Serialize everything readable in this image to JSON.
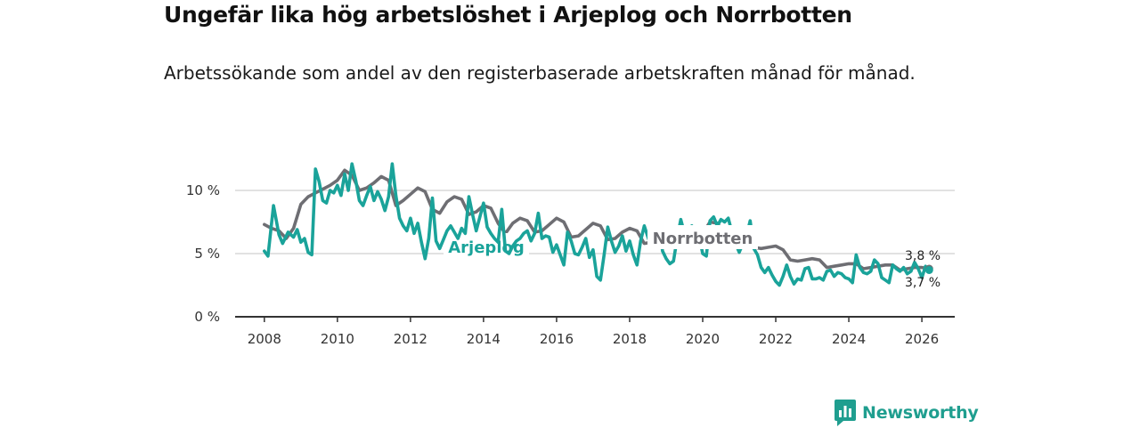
{
  "brand": {
    "name": "Newsworthy",
    "color": "#1f9e8f"
  },
  "chart_data": {
    "type": "line",
    "title": "Ungefär lika hög arbetslöshet i Arjeplog och Norrbotten",
    "subtitle": "Arbetssökande som andel av den registerbaserade arbetskraften månad för månad.",
    "xlabel": "",
    "ylabel": "",
    "xlim": [
      2007.2,
      2026.9
    ],
    "ylim": [
      0,
      12.5
    ],
    "x_ticks": [
      2008,
      2010,
      2012,
      2014,
      2016,
      2018,
      2020,
      2022,
      2024,
      2026
    ],
    "x_tick_labels": [
      "2008",
      "2010",
      "2012",
      "2014",
      "2016",
      "2018",
      "2020",
      "2022",
      "2024",
      "2026"
    ],
    "y_ticks": [
      0,
      5,
      10
    ],
    "y_tick_labels": [
      "0 %",
      "5 %",
      "10 %"
    ],
    "grid": true,
    "series": [
      {
        "name": "Norrbotten",
        "color": "#6e6e73",
        "end_label": "3,8 %",
        "points": [
          [
            2008.0,
            7.3
          ],
          [
            2008.2,
            7.0
          ],
          [
            2008.4,
            6.8
          ],
          [
            2008.6,
            6.2
          ],
          [
            2008.8,
            7.0
          ],
          [
            2009.0,
            8.9
          ],
          [
            2009.2,
            9.5
          ],
          [
            2009.4,
            9.8
          ],
          [
            2009.6,
            10.1
          ],
          [
            2009.8,
            10.4
          ],
          [
            2010.0,
            10.8
          ],
          [
            2010.2,
            11.6
          ],
          [
            2010.4,
            11.2
          ],
          [
            2010.6,
            10.0
          ],
          [
            2010.8,
            10.2
          ],
          [
            2011.0,
            10.6
          ],
          [
            2011.2,
            11.1
          ],
          [
            2011.4,
            10.8
          ],
          [
            2011.6,
            8.8
          ],
          [
            2011.8,
            9.2
          ],
          [
            2012.0,
            9.7
          ],
          [
            2012.2,
            10.2
          ],
          [
            2012.4,
            9.9
          ],
          [
            2012.6,
            8.5
          ],
          [
            2012.8,
            8.2
          ],
          [
            2013.0,
            9.1
          ],
          [
            2013.2,
            9.5
          ],
          [
            2013.4,
            9.3
          ],
          [
            2013.6,
            8.1
          ],
          [
            2013.8,
            8.3
          ],
          [
            2014.0,
            8.8
          ],
          [
            2014.2,
            8.6
          ],
          [
            2014.4,
            7.4
          ],
          [
            2014.6,
            6.6
          ],
          [
            2014.8,
            7.4
          ],
          [
            2015.0,
            7.8
          ],
          [
            2015.2,
            7.6
          ],
          [
            2015.4,
            6.7
          ],
          [
            2015.6,
            6.8
          ],
          [
            2015.8,
            7.3
          ],
          [
            2016.0,
            7.8
          ],
          [
            2016.2,
            7.5
          ],
          [
            2016.4,
            6.3
          ],
          [
            2016.6,
            6.4
          ],
          [
            2016.8,
            6.9
          ],
          [
            2017.0,
            7.4
          ],
          [
            2017.2,
            7.2
          ],
          [
            2017.4,
            6.1
          ],
          [
            2017.6,
            6.2
          ],
          [
            2017.8,
            6.7
          ],
          [
            2018.0,
            7.0
          ],
          [
            2018.2,
            6.8
          ],
          [
            2018.4,
            5.8
          ],
          [
            2018.6,
            5.9
          ],
          [
            2018.8,
            6.3
          ],
          [
            2019.0,
            6.6
          ],
          [
            2019.2,
            6.5
          ],
          [
            2019.4,
            5.7
          ],
          [
            2019.6,
            5.8
          ],
          [
            2019.8,
            6.2
          ],
          [
            2020.0,
            6.6
          ],
          [
            2020.2,
            7.5
          ],
          [
            2020.4,
            7.4
          ],
          [
            2020.6,
            6.5
          ],
          [
            2020.8,
            6.3
          ],
          [
            2021.0,
            6.6
          ],
          [
            2021.2,
            6.5
          ],
          [
            2021.4,
            5.5
          ],
          [
            2021.6,
            5.4
          ],
          [
            2021.8,
            5.5
          ],
          [
            2022.0,
            5.6
          ],
          [
            2022.2,
            5.3
          ],
          [
            2022.4,
            4.5
          ],
          [
            2022.6,
            4.4
          ],
          [
            2022.8,
            4.5
          ],
          [
            2023.0,
            4.6
          ],
          [
            2023.2,
            4.5
          ],
          [
            2023.4,
            3.9
          ],
          [
            2023.6,
            4.0
          ],
          [
            2023.8,
            4.1
          ],
          [
            2024.0,
            4.2
          ],
          [
            2024.2,
            4.2
          ],
          [
            2024.4,
            3.8
          ],
          [
            2024.6,
            3.9
          ],
          [
            2024.8,
            4.0
          ],
          [
            2025.0,
            4.1
          ],
          [
            2025.2,
            4.1
          ],
          [
            2025.4,
            3.7
          ],
          [
            2025.6,
            3.8
          ],
          [
            2025.8,
            3.9
          ],
          [
            2026.0,
            3.9
          ],
          [
            2026.2,
            3.8
          ]
        ]
      },
      {
        "name": "Arjeplog",
        "color": "#1aa39a",
        "end_label": "3,7 %",
        "points": [
          [
            2008.0,
            5.2
          ],
          [
            2008.1,
            4.8
          ],
          [
            2008.25,
            8.8
          ],
          [
            2008.4,
            6.5
          ],
          [
            2008.5,
            5.8
          ],
          [
            2008.65,
            6.7
          ],
          [
            2008.8,
            6.3
          ],
          [
            2008.9,
            6.9
          ],
          [
            2009.0,
            5.9
          ],
          [
            2009.1,
            6.2
          ],
          [
            2009.2,
            5.1
          ],
          [
            2009.3,
            4.9
          ],
          [
            2009.4,
            11.7
          ],
          [
            2009.5,
            10.7
          ],
          [
            2009.6,
            9.2
          ],
          [
            2009.7,
            9.0
          ],
          [
            2009.8,
            10.0
          ],
          [
            2009.9,
            9.8
          ],
          [
            2010.0,
            10.4
          ],
          [
            2010.1,
            9.6
          ],
          [
            2010.2,
            11.3
          ],
          [
            2010.3,
            10.0
          ],
          [
            2010.4,
            12.1
          ],
          [
            2010.5,
            10.8
          ],
          [
            2010.6,
            9.2
          ],
          [
            2010.7,
            8.8
          ],
          [
            2010.8,
            9.6
          ],
          [
            2010.9,
            10.3
          ],
          [
            2011.0,
            9.2
          ],
          [
            2011.1,
            9.9
          ],
          [
            2011.2,
            9.3
          ],
          [
            2011.3,
            8.4
          ],
          [
            2011.4,
            9.5
          ],
          [
            2011.5,
            12.1
          ],
          [
            2011.6,
            9.6
          ],
          [
            2011.7,
            7.8
          ],
          [
            2011.8,
            7.2
          ],
          [
            2011.9,
            6.8
          ],
          [
            2012.0,
            7.8
          ],
          [
            2012.1,
            6.6
          ],
          [
            2012.2,
            7.4
          ],
          [
            2012.3,
            5.9
          ],
          [
            2012.4,
            4.6
          ],
          [
            2012.5,
            6.2
          ],
          [
            2012.6,
            9.4
          ],
          [
            2012.7,
            6.0
          ],
          [
            2012.8,
            5.4
          ],
          [
            2012.9,
            6.1
          ],
          [
            2013.0,
            6.8
          ],
          [
            2013.1,
            7.2
          ],
          [
            2013.2,
            6.7
          ],
          [
            2013.3,
            6.2
          ],
          [
            2013.4,
            7.0
          ],
          [
            2013.5,
            6.6
          ],
          [
            2013.6,
            9.5
          ],
          [
            2013.7,
            8.1
          ],
          [
            2013.8,
            6.8
          ],
          [
            2013.9,
            7.9
          ],
          [
            2014.0,
            9.0
          ],
          [
            2014.1,
            7.1
          ],
          [
            2014.2,
            6.6
          ],
          [
            2014.3,
            6.2
          ],
          [
            2014.4,
            5.9
          ],
          [
            2014.5,
            8.5
          ],
          [
            2014.6,
            5.2
          ],
          [
            2014.7,
            5.0
          ],
          [
            2014.8,
            5.6
          ],
          [
            2014.9,
            6.0
          ],
          [
            2015.0,
            6.2
          ],
          [
            2015.1,
            6.6
          ],
          [
            2015.2,
            6.8
          ],
          [
            2015.3,
            6.0
          ],
          [
            2015.4,
            6.6
          ],
          [
            2015.5,
            8.2
          ],
          [
            2015.6,
            6.2
          ],
          [
            2015.7,
            6.4
          ],
          [
            2015.8,
            6.3
          ],
          [
            2015.9,
            5.1
          ],
          [
            2016.0,
            5.7
          ],
          [
            2016.1,
            4.9
          ],
          [
            2016.2,
            4.1
          ],
          [
            2016.3,
            6.7
          ],
          [
            2016.4,
            6.0
          ],
          [
            2016.5,
            5.0
          ],
          [
            2016.6,
            4.9
          ],
          [
            2016.7,
            5.5
          ],
          [
            2016.8,
            6.2
          ],
          [
            2016.9,
            4.7
          ],
          [
            2017.0,
            5.3
          ],
          [
            2017.1,
            3.2
          ],
          [
            2017.2,
            2.9
          ],
          [
            2017.3,
            4.9
          ],
          [
            2017.4,
            7.1
          ],
          [
            2017.5,
            6.0
          ],
          [
            2017.6,
            5.1
          ],
          [
            2017.7,
            5.6
          ],
          [
            2017.8,
            6.4
          ],
          [
            2017.9,
            5.2
          ],
          [
            2018.0,
            6.0
          ],
          [
            2018.1,
            4.9
          ],
          [
            2018.2,
            4.1
          ],
          [
            2018.3,
            6.0
          ],
          [
            2018.4,
            7.2
          ],
          [
            2018.5,
            6.3
          ],
          [
            2018.6,
            5.5
          ],
          [
            2018.7,
            6.4
          ]
        ]
      },
      {
        "name": "Arjeplog",
        "color": "#1aa39a",
        "points": [
          [
            2018.85,
            6.4
          ],
          [
            2018.9,
            5.2
          ],
          [
            2019.0,
            4.6
          ],
          [
            2019.1,
            4.2
          ],
          [
            2019.2,
            4.4
          ],
          [
            2019.3,
            6.2
          ],
          [
            2019.4,
            7.7
          ],
          [
            2019.5,
            6.6
          ],
          [
            2019.6,
            6.1
          ],
          [
            2019.7,
            7.2
          ],
          [
            2019.8,
            6.9
          ],
          [
            2019.9,
            6.4
          ],
          [
            2020.0,
            5.0
          ],
          [
            2020.1,
            4.8
          ],
          [
            2020.2,
            7.6
          ],
          [
            2020.3,
            7.9
          ],
          [
            2020.4,
            7.2
          ],
          [
            2020.5,
            7.7
          ],
          [
            2020.6,
            7.5
          ],
          [
            2020.7,
            7.8
          ],
          [
            2020.8,
            6.7
          ],
          [
            2020.9,
            5.8
          ],
          [
            2021.0,
            5.1
          ],
          [
            2021.1,
            5.8
          ],
          [
            2021.2,
            6.4
          ],
          [
            2021.3,
            7.6
          ],
          [
            2021.4,
            5.4
          ],
          [
            2021.5,
            4.9
          ],
          [
            2021.6,
            3.9
          ],
          [
            2021.7,
            3.5
          ],
          [
            2021.8,
            3.9
          ],
          [
            2021.9,
            3.3
          ],
          [
            2022.0,
            2.8
          ],
          [
            2022.1,
            2.5
          ],
          [
            2022.2,
            3.2
          ],
          [
            2022.3,
            4.1
          ],
          [
            2022.4,
            3.2
          ],
          [
            2022.5,
            2.6
          ],
          [
            2022.6,
            3.0
          ],
          [
            2022.7,
            2.9
          ],
          [
            2022.8,
            3.8
          ],
          [
            2022.9,
            3.9
          ],
          [
            2023.0,
            3.0
          ],
          [
            2023.1,
            3.0
          ],
          [
            2023.2,
            3.1
          ],
          [
            2023.3,
            2.9
          ],
          [
            2023.4,
            3.6
          ],
          [
            2023.5,
            3.7
          ],
          [
            2023.6,
            3.2
          ],
          [
            2023.7,
            3.5
          ],
          [
            2023.8,
            3.4
          ],
          [
            2023.9,
            3.1
          ],
          [
            2024.0,
            3.0
          ],
          [
            2024.1,
            2.7
          ],
          [
            2024.2,
            4.9
          ],
          [
            2024.3,
            3.9
          ],
          [
            2024.4,
            3.5
          ],
          [
            2024.5,
            3.4
          ],
          [
            2024.6,
            3.6
          ],
          [
            2024.7,
            4.5
          ],
          [
            2024.8,
            4.2
          ],
          [
            2024.9,
            3.1
          ],
          [
            2025.0,
            2.9
          ],
          [
            2025.1,
            2.7
          ],
          [
            2025.2,
            4.1
          ],
          [
            2025.3,
            3.8
          ],
          [
            2025.4,
            3.6
          ],
          [
            2025.5,
            3.9
          ],
          [
            2025.6,
            3.4
          ],
          [
            2025.7,
            3.6
          ],
          [
            2025.8,
            4.3
          ],
          [
            2025.9,
            3.8
          ],
          [
            2026.0,
            3.1
          ],
          [
            2026.1,
            4.0
          ],
          [
            2026.2,
            3.7
          ]
        ]
      }
    ],
    "annotations": [
      {
        "text": "Arjeplog",
        "series": "Arjeplog"
      },
      {
        "text": "Norrbotten",
        "series": "Norrbotten"
      }
    ]
  }
}
